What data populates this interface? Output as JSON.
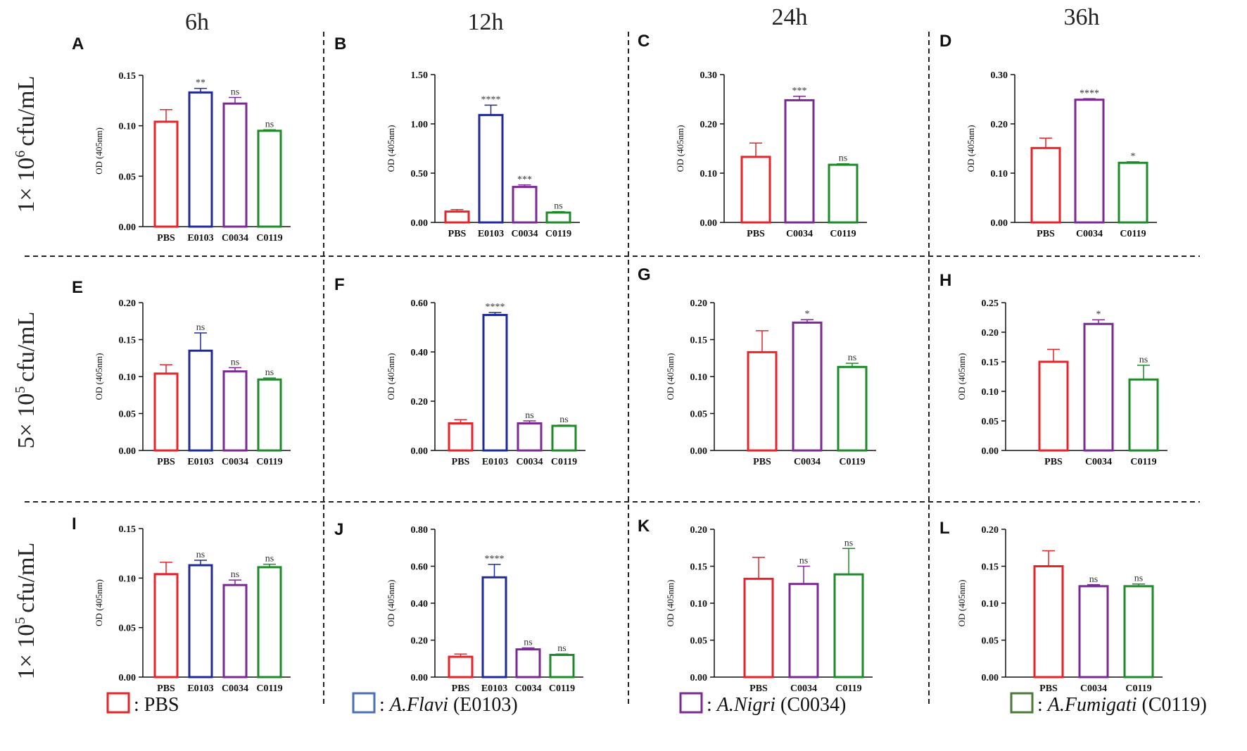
{
  "colors": {
    "PBS": "#e8232a",
    "E0103": "#1f2a9a",
    "C0034": "#7a2a92",
    "C0119": "#1e8a2a"
  },
  "column_headers": [
    "6h",
    "12h",
    "24h",
    "36h"
  ],
  "row_headers": [
    {
      "prefix": "1×",
      "base": "10",
      "exp": "6",
      "unit": "cfu/mL"
    },
    {
      "prefix": "5×",
      "base": "10",
      "exp": "5",
      "unit": "cfu/mL"
    },
    {
      "prefix": "1×",
      "base": "10",
      "exp": "5",
      "unit": "cfu/mL"
    }
  ],
  "legend": [
    {
      "key": "PBS",
      "sep": ": ",
      "name": "PBS",
      "code": ""
    },
    {
      "key": "E0103",
      "sep": ": ",
      "name": "A.Flavi",
      "code": " (E0103)"
    },
    {
      "key": "C0034",
      "sep": ": ",
      "name": "A.Nigri",
      "code": " (C0034)"
    },
    {
      "key": "C0119",
      "sep": ": ",
      "name": "A.Fumigati",
      "code": " (C0119)"
    }
  ],
  "chart_data": [
    {
      "panel": "A",
      "type": "bar",
      "ylabel": "OD (405nm)",
      "ylim": [
        0,
        0.15
      ],
      "yticks": [
        "0.00",
        "0.05",
        "0.10",
        "0.15"
      ],
      "categories": [
        "PBS",
        "E0103",
        "C0034",
        "C0119"
      ],
      "values": [
        0.104,
        0.133,
        0.122,
        0.095
      ],
      "errors": [
        0.012,
        0.004,
        0.006,
        0.001
      ],
      "sig": [
        "",
        "**",
        "ns",
        "ns"
      ]
    },
    {
      "panel": "B",
      "type": "bar",
      "ylabel": "OD (405nm)",
      "ylim": [
        0,
        1.5
      ],
      "yticks": [
        "0.00",
        "0.50",
        "1.00",
        "1.50"
      ],
      "categories": [
        "PBS",
        "E0103",
        "C0034",
        "C0119"
      ],
      "values": [
        0.11,
        1.09,
        0.36,
        0.1
      ],
      "errors": [
        0.02,
        0.1,
        0.02,
        0.01
      ],
      "sig": [
        "",
        "****",
        "***",
        "ns"
      ]
    },
    {
      "panel": "C",
      "type": "bar",
      "ylabel": "OD (405nm)",
      "ylim": [
        0,
        0.3
      ],
      "yticks": [
        "0.00",
        "0.10",
        "0.20",
        "0.30"
      ],
      "categories": [
        "PBS",
        "C0034",
        "C0119"
      ],
      "values": [
        0.133,
        0.248,
        0.117
      ],
      "errors": [
        0.028,
        0.008,
        0.002
      ],
      "sig": [
        "",
        "***",
        "ns"
      ]
    },
    {
      "panel": "D",
      "type": "bar",
      "ylabel": "OD (405nm)",
      "ylim": [
        0,
        0.3
      ],
      "yticks": [
        "0.00",
        "0.10",
        "0.20",
        "0.30"
      ],
      "categories": [
        "PBS",
        "C0034",
        "C0119"
      ],
      "values": [
        0.151,
        0.249,
        0.121
      ],
      "errors": [
        0.02,
        0.002,
        0.002
      ],
      "sig": [
        "",
        "****",
        "*"
      ]
    },
    {
      "panel": "E",
      "type": "bar",
      "ylabel": "OD (405nm)",
      "ylim": [
        0,
        0.2
      ],
      "yticks": [
        "0.00",
        "0.05",
        "0.10",
        "0.15",
        "0.20"
      ],
      "categories": [
        "PBS",
        "E0103",
        "C0034",
        "C0119"
      ],
      "values": [
        0.104,
        0.135,
        0.107,
        0.096
      ],
      "errors": [
        0.012,
        0.024,
        0.005,
        0.002
      ],
      "sig": [
        "",
        "ns",
        "ns",
        "ns"
      ]
    },
    {
      "panel": "F",
      "type": "bar",
      "ylabel": "OD (405nm)",
      "ylim": [
        0,
        0.6
      ],
      "yticks": [
        "0.00",
        "0.20",
        "0.40",
        "0.60"
      ],
      "categories": [
        "PBS",
        "E0103",
        "C0034",
        "C0119"
      ],
      "values": [
        0.11,
        0.55,
        0.11,
        0.1
      ],
      "errors": [
        0.015,
        0.01,
        0.01,
        0.003
      ],
      "sig": [
        "",
        "****",
        "ns",
        "ns"
      ]
    },
    {
      "panel": "G",
      "type": "bar",
      "ylabel": "OD (405nm)",
      "ylim": [
        0,
        0.2
      ],
      "yticks": [
        "0.00",
        "0.05",
        "0.10",
        "0.15",
        "0.20"
      ],
      "categories": [
        "PBS",
        "C0034",
        "C0119"
      ],
      "values": [
        0.133,
        0.173,
        0.113
      ],
      "errors": [
        0.029,
        0.004,
        0.005
      ],
      "sig": [
        "",
        "*",
        "ns"
      ]
    },
    {
      "panel": "H",
      "type": "bar",
      "ylabel": "OD (405nm)",
      "ylim": [
        0,
        0.25
      ],
      "yticks": [
        "0.00",
        "0.05",
        "0.10",
        "0.15",
        "0.20",
        "0.25"
      ],
      "categories": [
        "PBS",
        "C0034",
        "C0119"
      ],
      "values": [
        0.15,
        0.214,
        0.12
      ],
      "errors": [
        0.021,
        0.007,
        0.024
      ],
      "sig": [
        "",
        "*",
        "ns"
      ]
    },
    {
      "panel": "I",
      "type": "bar",
      "ylabel": "OD (405nm)",
      "ylim": [
        0,
        0.15
      ],
      "yticks": [
        "0.00",
        "0.05",
        "0.10",
        "0.15"
      ],
      "categories": [
        "PBS",
        "E0103",
        "C0034",
        "C0119"
      ],
      "values": [
        0.104,
        0.113,
        0.093,
        0.111
      ],
      "errors": [
        0.012,
        0.005,
        0.005,
        0.003
      ],
      "sig": [
        "",
        "ns",
        "ns",
        "ns"
      ]
    },
    {
      "panel": "J",
      "type": "bar",
      "ylabel": "OD (405nm)",
      "ylim": [
        0,
        0.8
      ],
      "yticks": [
        "0.00",
        "0.20",
        "0.40",
        "0.60",
        "0.80"
      ],
      "categories": [
        "PBS",
        "E0103",
        "C0034",
        "C0119"
      ],
      "values": [
        0.11,
        0.54,
        0.15,
        0.12
      ],
      "errors": [
        0.015,
        0.07,
        0.008,
        0.005
      ],
      "sig": [
        "",
        "****",
        "ns",
        "ns"
      ]
    },
    {
      "panel": "K",
      "type": "bar",
      "ylabel": "OD (405nm)",
      "ylim": [
        0,
        0.2
      ],
      "yticks": [
        "0.00",
        "0.05",
        "0.10",
        "0.15",
        "0.20"
      ],
      "categories": [
        "PBS",
        "C0034",
        "C0119"
      ],
      "values": [
        0.133,
        0.126,
        0.139
      ],
      "errors": [
        0.029,
        0.024,
        0.035
      ],
      "sig": [
        "",
        "ns",
        "ns"
      ]
    },
    {
      "panel": "L",
      "type": "bar",
      "ylabel": "OD (405nm)",
      "ylim": [
        0,
        0.2
      ],
      "yticks": [
        "0.00",
        "0.05",
        "0.10",
        "0.15",
        "0.20"
      ],
      "categories": [
        "PBS",
        "C0034",
        "C0119"
      ],
      "values": [
        0.15,
        0.123,
        0.123
      ],
      "errors": [
        0.021,
        0.002,
        0.003
      ],
      "sig": [
        "",
        "ns",
        "ns"
      ]
    }
  ]
}
